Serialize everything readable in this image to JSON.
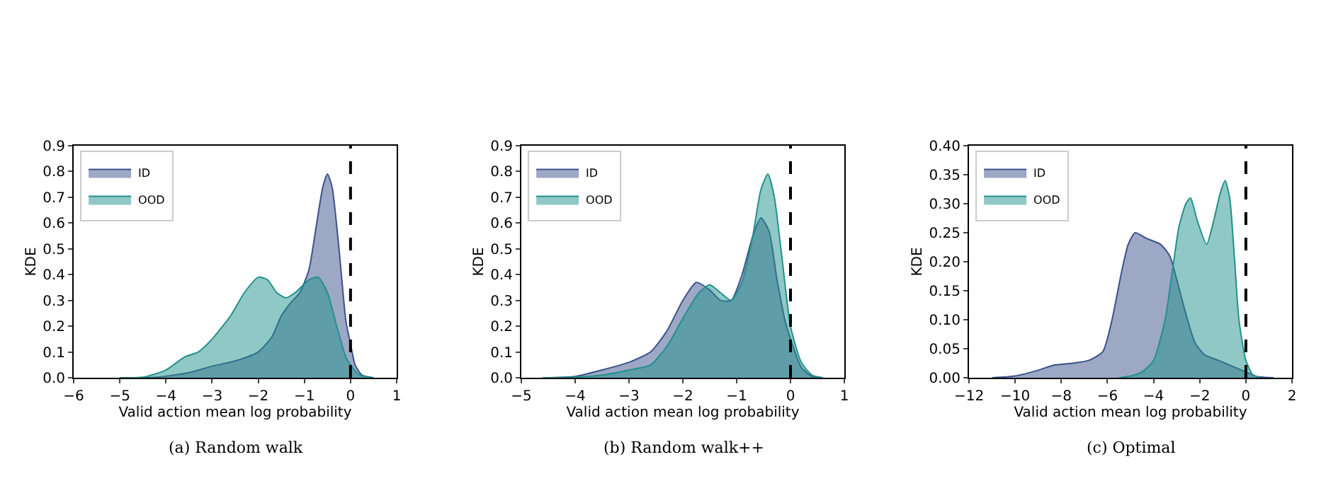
{
  "chart_data": [
    {
      "type": "area",
      "xlabel": "Valid action mean log probability",
      "ylabel": "KDE",
      "annotations": [
        "(a) Random walk"
      ],
      "legend": "top left",
      "grid": false,
      "xlim": [
        -6,
        1
      ],
      "xticks": [
        {
          "value": -6,
          "label": "−6"
        },
        {
          "value": -5,
          "label": "−5"
        },
        {
          "value": -4,
          "label": "−4"
        },
        {
          "value": -3,
          "label": "−3"
        },
        {
          "value": -2,
          "label": "−2"
        },
        {
          "value": -1,
          "label": "−1"
        },
        0,
        1
      ],
      "ylim": [
        0,
        0.9
      ],
      "yticks": [
        {
          "value": 0,
          "label": "0.0"
        },
        0.1,
        0.2,
        0.3,
        0.4,
        0.5,
        0.6,
        0.7,
        0.8,
        0.9
      ],
      "ref_lines": [
        {
          "axis": "x",
          "value": 0,
          "color": "#000000",
          "line_style": "dashed"
        }
      ],
      "series": [
        {
          "name": "ID",
          "color": "#3b528b",
          "x": [
            -5,
            -4.2,
            -3.5,
            -3,
            -2.5,
            -2,
            -1.7,
            -1.5,
            -1.3,
            -1.1,
            -0.9,
            -0.75,
            -0.6,
            -0.5,
            -0.4,
            -0.25,
            -0.1,
            0,
            0.1,
            0.25,
            0.5
          ],
          "values": [
            0,
            0.002,
            0.02,
            0.045,
            0.065,
            0.1,
            0.16,
            0.24,
            0.29,
            0.33,
            0.42,
            0.58,
            0.74,
            0.79,
            0.74,
            0.5,
            0.22,
            0.13,
            0.05,
            0.01,
            0
          ]
        },
        {
          "name": "OOD",
          "color": "#21918c",
          "x": [
            -5,
            -4.5,
            -4,
            -3.6,
            -3.3,
            -3,
            -2.6,
            -2.3,
            -2,
            -1.8,
            -1.6,
            -1.4,
            -1.2,
            -0.9,
            -0.7,
            -0.5,
            -0.3,
            -0.1,
            0,
            0.2,
            0.5
          ],
          "values": [
            0,
            0.002,
            0.03,
            0.08,
            0.1,
            0.15,
            0.24,
            0.33,
            0.39,
            0.38,
            0.33,
            0.31,
            0.33,
            0.38,
            0.39,
            0.33,
            0.2,
            0.08,
            0.05,
            0.01,
            0
          ]
        }
      ]
    },
    {
      "type": "area",
      "xlabel": "Valid action mean log probability",
      "ylabel": "KDE",
      "annotations": [
        "(b) Random walk++"
      ],
      "legend": "top left",
      "grid": false,
      "xlim": [
        -5,
        1
      ],
      "xticks": [
        {
          "value": -5,
          "label": "−5"
        },
        {
          "value": -4,
          "label": "−4"
        },
        {
          "value": -3,
          "label": "−3"
        },
        {
          "value": -2,
          "label": "−2"
        },
        {
          "value": -1,
          "label": "−1"
        },
        0,
        1
      ],
      "ylim": [
        0,
        0.9
      ],
      "yticks": [
        {
          "value": 0,
          "label": "0.0"
        },
        0.1,
        0.2,
        0.3,
        0.4,
        0.5,
        0.6,
        0.7,
        0.8,
        0.9
      ],
      "ref_lines": [
        {
          "axis": "x",
          "value": 0,
          "color": "#000000",
          "line_style": "dashed"
        }
      ],
      "series": [
        {
          "name": "ID",
          "color": "#3b528b",
          "x": [
            -4.6,
            -4,
            -3.5,
            -3,
            -2.6,
            -2.3,
            -2,
            -1.75,
            -1.5,
            -1.3,
            -1.1,
            -0.9,
            -0.7,
            -0.55,
            -0.4,
            -0.25,
            -0.1,
            0,
            0.2,
            0.4,
            0.6
          ],
          "values": [
            0,
            0.005,
            0.03,
            0.06,
            0.1,
            0.18,
            0.3,
            0.37,
            0.34,
            0.3,
            0.3,
            0.4,
            0.55,
            0.62,
            0.57,
            0.38,
            0.22,
            0.15,
            0.04,
            0.005,
            0
          ]
        },
        {
          "name": "OOD",
          "color": "#21918c",
          "x": [
            -4.6,
            -4,
            -3.5,
            -3,
            -2.6,
            -2.3,
            -2,
            -1.7,
            -1.5,
            -1.3,
            -1.1,
            -0.9,
            -0.7,
            -0.55,
            -0.42,
            -0.3,
            -0.15,
            0,
            0.2,
            0.4,
            0.6
          ],
          "values": [
            0,
            0.002,
            0.01,
            0.03,
            0.05,
            0.12,
            0.23,
            0.33,
            0.36,
            0.33,
            0.3,
            0.37,
            0.55,
            0.73,
            0.79,
            0.7,
            0.45,
            0.2,
            0.06,
            0.01,
            0
          ]
        }
      ]
    },
    {
      "type": "area",
      "xlabel": "Valid action mean log probability",
      "ylabel": "KDE",
      "annotations": [
        "(c) Optimal"
      ],
      "legend": "top left",
      "grid": false,
      "xlim": [
        -12,
        2
      ],
      "xticks": [
        {
          "value": -12,
          "label": "−12"
        },
        {
          "value": -10,
          "label": "−10"
        },
        {
          "value": -8,
          "label": "−8"
        },
        {
          "value": -6,
          "label": "−6"
        },
        {
          "value": -4,
          "label": "−4"
        },
        {
          "value": -2,
          "label": "−2"
        },
        0,
        2
      ],
      "ylim": [
        0,
        0.4
      ],
      "yticks": [
        {
          "value": 0,
          "label": "0.00"
        },
        {
          "value": 0.05,
          "label": "0.05"
        },
        {
          "value": 0.1,
          "label": "0.10"
        },
        {
          "value": 0.15,
          "label": "0.15"
        },
        {
          "value": 0.2,
          "label": "0.20"
        },
        {
          "value": 0.25,
          "label": "0.25"
        },
        {
          "value": 0.3,
          "label": "0.30"
        },
        {
          "value": 0.35,
          "label": "0.35"
        },
        {
          "value": 0.4,
          "label": "0.40"
        }
      ],
      "ref_lines": [
        {
          "axis": "x",
          "value": 0,
          "color": "#000000",
          "line_style": "dashed"
        }
      ],
      "series": [
        {
          "name": "ID",
          "color": "#3b528b",
          "x": [
            -11,
            -10,
            -9,
            -8.3,
            -7.5,
            -6.8,
            -6.2,
            -5.8,
            -5.4,
            -5.1,
            -4.8,
            -4.3,
            -3.7,
            -3.3,
            -3,
            -2.6,
            -2.2,
            -1.8,
            -1.2,
            -0.6,
            0,
            0.5,
            1.2
          ],
          "values": [
            0,
            0.003,
            0.013,
            0.022,
            0.025,
            0.03,
            0.045,
            0.1,
            0.18,
            0.23,
            0.25,
            0.24,
            0.23,
            0.21,
            0.17,
            0.11,
            0.06,
            0.04,
            0.03,
            0.02,
            0.01,
            0.002,
            0
          ]
        },
        {
          "name": "OOD",
          "color": "#21918c",
          "x": [
            -5.5,
            -5,
            -4.5,
            -4,
            -3.5,
            -3.2,
            -2.9,
            -2.6,
            -2.4,
            -2.1,
            -1.7,
            -1.4,
            -1.1,
            -0.9,
            -0.7,
            -0.5,
            -0.3,
            0,
            0.3,
            0.6
          ],
          "values": [
            0,
            0.003,
            0.01,
            0.03,
            0.1,
            0.18,
            0.26,
            0.3,
            0.31,
            0.27,
            0.23,
            0.27,
            0.32,
            0.34,
            0.31,
            0.21,
            0.1,
            0.03,
            0.005,
            0
          ]
        }
      ]
    }
  ]
}
